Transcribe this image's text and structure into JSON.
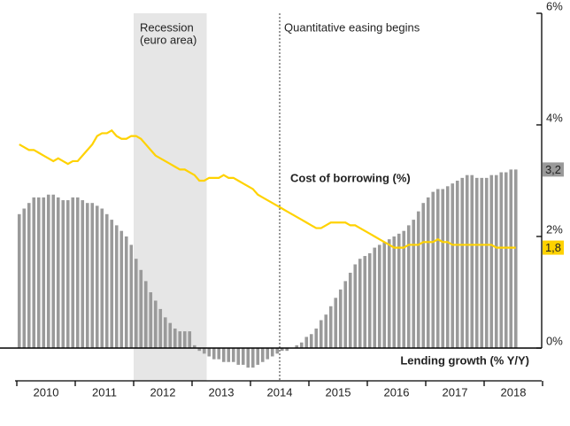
{
  "chart_data": {
    "type": "bar_line",
    "categories": [
      null,
      null,
      null,
      null,
      null,
      null,
      "2010",
      null,
      null,
      null,
      null,
      null,
      null,
      null,
      null,
      null,
      null,
      null,
      "2011",
      null,
      null,
      null,
      null,
      null,
      null,
      null,
      null,
      null,
      null,
      null,
      "2012",
      null,
      null,
      null,
      null,
      null,
      null,
      null,
      null,
      null,
      null,
      null,
      "2013",
      null,
      null,
      null,
      null,
      null,
      null,
      null,
      null,
      null,
      null,
      null,
      "2014",
      null,
      null,
      null,
      null,
      null,
      null,
      null,
      null,
      null,
      null,
      null,
      "2015",
      null,
      null,
      null,
      null,
      null,
      null,
      null,
      null,
      null,
      null,
      null,
      "2016",
      null,
      null,
      null,
      null,
      null,
      null,
      null,
      null,
      null,
      null,
      null,
      "2017",
      null,
      null,
      null,
      null,
      null,
      null,
      null,
      null,
      null,
      null,
      null,
      "2018"
    ],
    "series": [
      {
        "name": "Lending growth (% Y/Y)",
        "type": "bar",
        "color": "#9a9a9a",
        "label_color": "#a6a6a6",
        "values": [
          2.4,
          2.5,
          2.6,
          2.7,
          2.7,
          2.7,
          2.75,
          2.75,
          2.7,
          2.65,
          2.65,
          2.7,
          2.7,
          2.65,
          2.6,
          2.6,
          2.55,
          2.5,
          2.4,
          2.3,
          2.2,
          2.1,
          2.0,
          1.85,
          1.6,
          1.4,
          1.2,
          1.0,
          0.85,
          0.7,
          0.55,
          0.45,
          0.35,
          0.3,
          0.3,
          0.3,
          0.05,
          -0.05,
          -0.1,
          -0.15,
          -0.2,
          -0.2,
          -0.25,
          -0.25,
          -0.25,
          -0.3,
          -0.3,
          -0.35,
          -0.35,
          -0.3,
          -0.25,
          -0.2,
          -0.15,
          -0.1,
          -0.05,
          -0.05,
          0,
          0.05,
          0.1,
          0.2,
          0.25,
          0.35,
          0.5,
          0.6,
          0.75,
          0.9,
          1.05,
          1.2,
          1.35,
          1.5,
          1.6,
          1.65,
          1.7,
          1.8,
          1.85,
          1.9,
          1.95,
          2.0,
          2.05,
          2.1,
          2.2,
          2.3,
          2.45,
          2.6,
          2.7,
          2.8,
          2.85,
          2.85,
          2.9,
          2.95,
          3.0,
          3.05,
          3.1,
          3.1,
          3.05,
          3.05,
          3.05,
          3.1,
          3.1,
          3.15,
          3.15,
          3.2,
          3.2
        ],
        "value_labels": [
          null,
          null,
          null,
          null,
          null,
          null,
          null,
          null,
          null,
          null,
          null,
          null,
          null,
          null,
          null,
          null,
          null,
          null,
          null,
          null,
          null,
          null,
          null,
          null,
          null,
          null,
          null,
          null,
          null,
          null,
          null,
          null,
          null,
          null,
          null,
          null,
          null,
          null,
          null,
          null,
          null,
          null,
          null,
          null,
          null,
          null,
          null,
          null,
          null,
          null,
          null,
          null,
          null,
          null,
          null,
          null,
          null,
          null,
          null,
          null,
          null,
          null,
          null,
          null,
          null,
          null,
          null,
          null,
          null,
          null,
          null,
          null,
          null,
          null,
          null,
          null,
          null,
          null,
          null,
          null,
          null,
          null,
          null,
          null,
          null,
          null,
          null,
          null,
          null,
          null,
          null,
          null,
          null,
          null,
          null,
          null,
          null,
          null,
          null,
          null,
          null,
          null,
          "3,2"
        ]
      },
      {
        "name": "Cost of borrowing (%)",
        "type": "line",
        "color": "#ffd200",
        "label_color": "#f5c800",
        "values": [
          3.65,
          3.6,
          3.55,
          3.55,
          3.5,
          3.45,
          3.4,
          3.35,
          3.4,
          3.35,
          3.3,
          3.35,
          3.35,
          3.45,
          3.55,
          3.65,
          3.8,
          3.85,
          3.85,
          3.9,
          3.8,
          3.75,
          3.75,
          3.8,
          3.8,
          3.75,
          3.65,
          3.55,
          3.45,
          3.4,
          3.35,
          3.3,
          3.25,
          3.2,
          3.2,
          3.15,
          3.1,
          3.0,
          3.0,
          3.05,
          3.05,
          3.05,
          3.1,
          3.05,
          3.05,
          3.0,
          2.95,
          2.9,
          2.85,
          2.75,
          2.7,
          2.65,
          2.6,
          2.55,
          2.5,
          2.45,
          2.4,
          2.35,
          2.3,
          2.25,
          2.2,
          2.15,
          2.15,
          2.2,
          2.25,
          2.25,
          2.25,
          2.25,
          2.2,
          2.2,
          2.15,
          2.1,
          2.05,
          2.0,
          1.95,
          1.9,
          1.85,
          1.8,
          1.8,
          1.8,
          1.85,
          1.85,
          1.85,
          1.9,
          1.9,
          1.9,
          1.95,
          1.9,
          1.9,
          1.85,
          1.85,
          1.85,
          1.85,
          1.85,
          1.85,
          1.85,
          1.85,
          1.85,
          1.8,
          1.8,
          1.8,
          1.8,
          1.8
        ],
        "value_labels": [
          null,
          null,
          null,
          null,
          null,
          null,
          null,
          null,
          null,
          null,
          null,
          null,
          null,
          null,
          null,
          null,
          null,
          null,
          null,
          null,
          null,
          null,
          null,
          null,
          null,
          null,
          null,
          null,
          null,
          null,
          null,
          null,
          null,
          null,
          null,
          null,
          null,
          null,
          null,
          null,
          null,
          null,
          null,
          null,
          null,
          null,
          null,
          null,
          null,
          null,
          null,
          null,
          null,
          null,
          null,
          null,
          null,
          null,
          null,
          null,
          null,
          null,
          null,
          null,
          null,
          null,
          null,
          null,
          null,
          null,
          null,
          null,
          null,
          null,
          null,
          null,
          null,
          null,
          null,
          null,
          null,
          null,
          null,
          null,
          null,
          null,
          null,
          null,
          null,
          null,
          null,
          null,
          null,
          null,
          null,
          null,
          null,
          null,
          null,
          null,
          null,
          null,
          "1,8"
        ]
      }
    ],
    "ylim": [
      -0.6,
      6
    ],
    "yticks": [
      {
        "value": 0,
        "label": "0%"
      },
      {
        "value": 2,
        "label": "2%"
      },
      {
        "value": 4,
        "label": "4%"
      },
      {
        "value": 6,
        "label": "6%"
      }
    ],
    "shaded_span": {
      "lines": [
        "Recession",
        "(euro area)"
      ],
      "start": 24,
      "end": 39,
      "color": "#e6e6e6"
    },
    "marker_line": {
      "label": "Quantitative easing begins",
      "at": 54
    }
  }
}
